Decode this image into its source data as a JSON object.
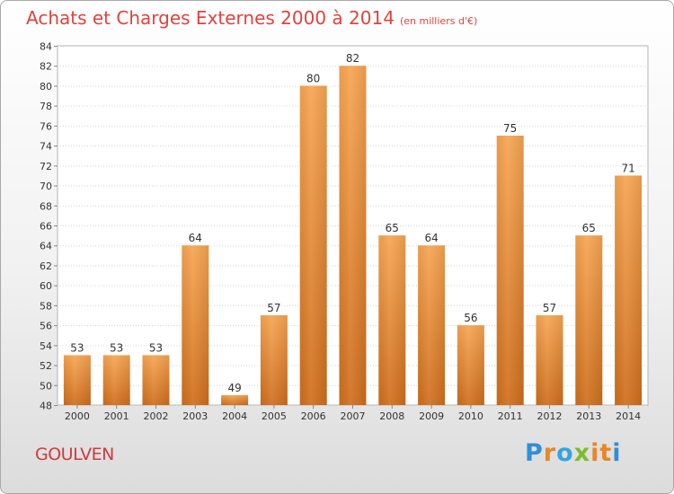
{
  "chart_data": {
    "type": "bar",
    "title": "Achats et Charges Externes 2000 à 2014",
    "subtitle": "(en milliers d'€)",
    "categories": [
      "2000",
      "2001",
      "2002",
      "2003",
      "2004",
      "2005",
      "2006",
      "2007",
      "2008",
      "2009",
      "2010",
      "2011",
      "2012",
      "2013",
      "2014"
    ],
    "values": [
      53,
      53,
      53,
      64,
      49,
      57,
      80,
      82,
      65,
      64,
      56,
      75,
      57,
      65,
      71
    ],
    "ylim": [
      48,
      84
    ],
    "yticks": [
      48,
      50,
      52,
      54,
      56,
      58,
      60,
      62,
      64,
      66,
      68,
      70,
      72,
      74,
      76,
      78,
      80,
      82,
      84
    ],
    "grid": true,
    "bar_color": "#e98833",
    "bar_color_light": "#f7a552",
    "bar_color_dark": "#cf6e1c"
  },
  "footer": {
    "commune": "GOULVEN",
    "logo_letters": [
      "P",
      "r",
      "o",
      "x",
      "i",
      "t",
      "i"
    ],
    "logo_colors": [
      "#2f8fd8",
      "#e8862a",
      "#35a4e0",
      "#7bbd2e",
      "#e8862a",
      "#e8862a",
      "#2f8fd8"
    ]
  }
}
